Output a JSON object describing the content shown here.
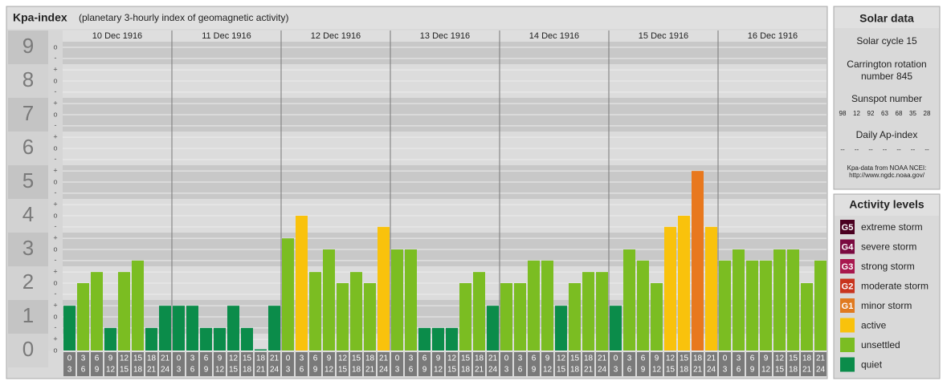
{
  "chart_data": {
    "type": "bar",
    "title": "Kpa-index",
    "subtitle": "(planetary 3-hourly index of geomagnetic activity)",
    "days": [
      "10 Dec 1916",
      "11 Dec 1916",
      "12 Dec 1916",
      "13 Dec 1916",
      "14 Dec 1916",
      "15 Dec 1916",
      "16 Dec 1916"
    ],
    "time_slots": [
      [
        "0",
        "3"
      ],
      [
        "3",
        "6"
      ],
      [
        "6",
        "9"
      ],
      [
        "9",
        "12"
      ],
      [
        "12",
        "15"
      ],
      [
        "15",
        "18"
      ],
      [
        "18",
        "21"
      ],
      [
        "21",
        "24"
      ]
    ],
    "values": [
      1.33,
      2,
      2.33,
      0.67,
      2.33,
      2.67,
      0.67,
      1.33,
      1.33,
      1.33,
      0.67,
      0.67,
      1.33,
      0.67,
      0,
      1.33,
      3.33,
      4,
      2.33,
      3,
      2,
      2.33,
      2,
      3.67,
      3,
      3,
      0.67,
      0.67,
      0.67,
      2,
      2.33,
      1.33,
      2,
      2,
      2.67,
      2.67,
      1.33,
      2,
      2.33,
      2.33,
      1.33,
      3,
      2.67,
      2,
      3.67,
      4,
      5.33,
      3.67,
      2.67,
      3,
      2.67,
      2.67,
      3,
      3,
      2,
      2.67
    ],
    "colors": [
      "#0b8c4a",
      "#7bbd22",
      "#7bbd22",
      "#0b8c4a",
      "#7bbd22",
      "#7bbd22",
      "#0b8c4a",
      "#0b8c4a",
      "#0b8c4a",
      "#0b8c4a",
      "#0b8c4a",
      "#0b8c4a",
      "#0b8c4a",
      "#0b8c4a",
      "#0b8c4a",
      "#0b8c4a",
      "#7bbd22",
      "#f9c20c",
      "#7bbd22",
      "#7bbd22",
      "#7bbd22",
      "#7bbd22",
      "#7bbd22",
      "#f9c20c",
      "#7bbd22",
      "#7bbd22",
      "#0b8c4a",
      "#0b8c4a",
      "#0b8c4a",
      "#7bbd22",
      "#7bbd22",
      "#0b8c4a",
      "#7bbd22",
      "#7bbd22",
      "#7bbd22",
      "#7bbd22",
      "#0b8c4a",
      "#7bbd22",
      "#7bbd22",
      "#7bbd22",
      "#0b8c4a",
      "#7bbd22",
      "#7bbd22",
      "#7bbd22",
      "#f9c20c",
      "#f9c20c",
      "#e8781e",
      "#f9c20c",
      "#7bbd22",
      "#7bbd22",
      "#7bbd22",
      "#7bbd22",
      "#7bbd22",
      "#7bbd22",
      "#7bbd22",
      "#7bbd22"
    ],
    "ylim": [
      0,
      9.5
    ],
    "yticks": [
      0,
      1,
      2,
      3,
      4,
      5,
      6,
      7,
      8,
      9
    ],
    "minor_ticks": [
      {
        "value": 0,
        "label": "o"
      },
      {
        "value": 0.33,
        "label": "+"
      },
      {
        "value": 0.67,
        "label": "-"
      },
      {
        "value": 1,
        "label": "o"
      },
      {
        "value": 1.33,
        "label": "+"
      },
      {
        "value": 1.67,
        "label": "-"
      },
      {
        "value": 2,
        "label": "o"
      },
      {
        "value": 2.33,
        "label": "+"
      },
      {
        "value": 2.67,
        "label": "-"
      },
      {
        "value": 3,
        "label": "o"
      },
      {
        "value": 3.33,
        "label": "+"
      },
      {
        "value": 3.67,
        "label": "-"
      },
      {
        "value": 4,
        "label": "o"
      },
      {
        "value": 4.33,
        "label": "+"
      },
      {
        "value": 4.67,
        "label": "-"
      },
      {
        "value": 5,
        "label": "o"
      },
      {
        "value": 5.33,
        "label": "+"
      },
      {
        "value": 5.67,
        "label": "-"
      },
      {
        "value": 6,
        "label": "o"
      },
      {
        "value": 6.33,
        "label": "+"
      },
      {
        "value": 6.67,
        "label": "-"
      },
      {
        "value": 7,
        "label": "o"
      },
      {
        "value": 7.33,
        "label": "+"
      },
      {
        "value": 7.67,
        "label": "-"
      },
      {
        "value": 8,
        "label": "o"
      },
      {
        "value": 8.33,
        "label": "+"
      },
      {
        "value": 8.67,
        "label": "-"
      },
      {
        "value": 9,
        "label": "o"
      }
    ],
    "grid": true
  },
  "solar_data": {
    "title": "Solar data",
    "solar_cycle": "Solar cycle 15",
    "carrington": [
      "Carrington rotation",
      "number 845"
    ],
    "sunspot_label": "Sunspot number",
    "sunspot_numbers": [
      98,
      12,
      92,
      63,
      68,
      35,
      28
    ],
    "ap_label": "Daily Ap-index",
    "ap_values": [
      "--",
      "--",
      "--",
      "--",
      "--",
      "--",
      "--"
    ],
    "source": [
      "Kpa-data from NOAA NCEI:",
      "http://www.ngdc.noaa.gov/"
    ]
  },
  "activity_levels": {
    "title": "Activity levels",
    "items": [
      {
        "badge": "G5",
        "name": "extreme storm",
        "color": "#4a0020"
      },
      {
        "badge": "G4",
        "name": "severe storm",
        "color": "#7a0a40"
      },
      {
        "badge": "G3",
        "name": "strong storm",
        "color": "#a8184e"
      },
      {
        "badge": "G2",
        "name": "moderate storm",
        "color": "#c8341e"
      },
      {
        "badge": "G1",
        "name": "minor storm",
        "color": "#e07a20"
      },
      {
        "name": "active",
        "color": "#f9c20c"
      },
      {
        "name": "unsettled",
        "color": "#7bbd22"
      },
      {
        "name": "quiet",
        "color": "#0b8c4a"
      }
    ]
  }
}
